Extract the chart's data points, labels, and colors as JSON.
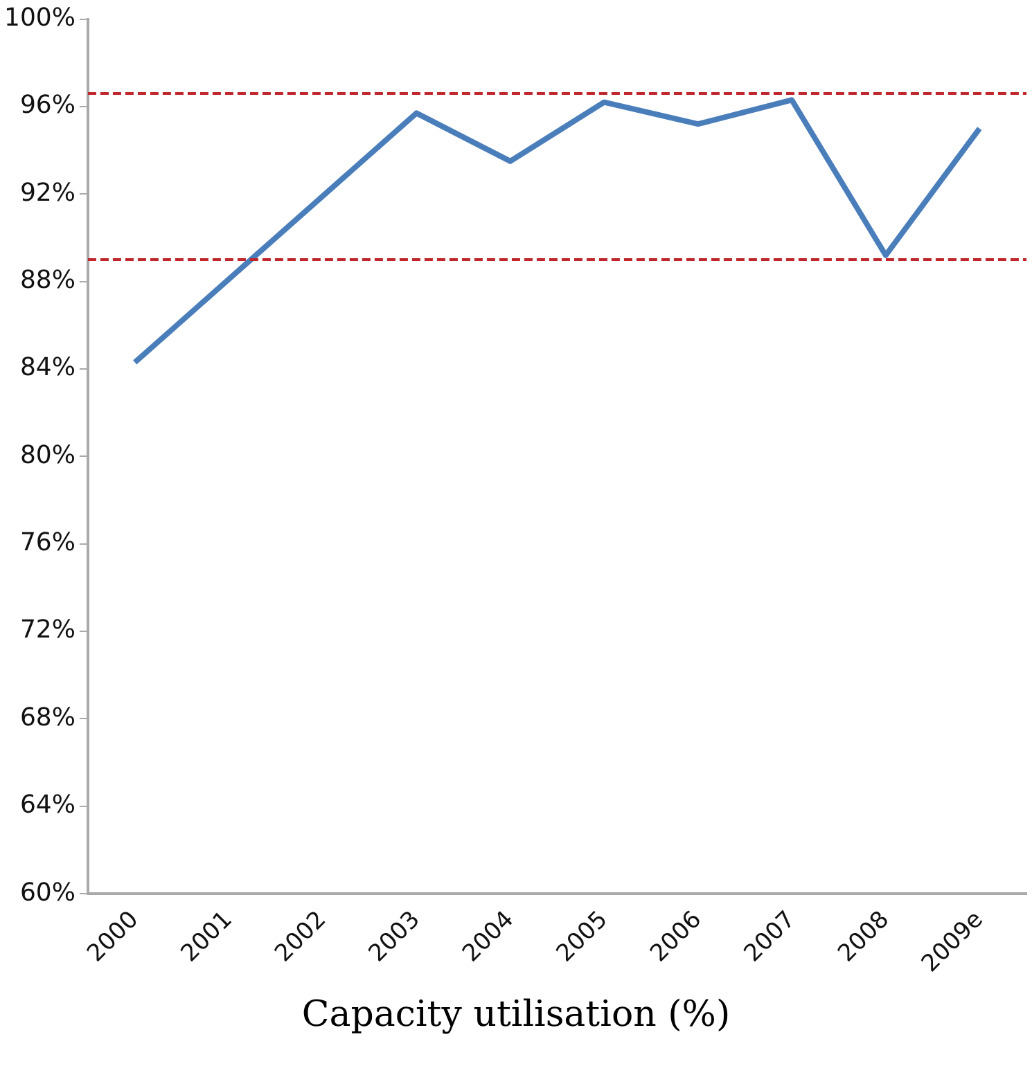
{
  "chart_data": {
    "type": "line",
    "xlabel": "Capacity utilisation (%)",
    "categories": [
      "2000",
      "2001",
      "2002",
      "2003",
      "2004",
      "2005",
      "2006",
      "2007",
      "2008",
      "2009e"
    ],
    "series": [
      {
        "color": "#4a7ebb",
        "values": [
          84.3,
          88.1,
          91.9,
          95.7,
          93.5,
          96.2,
          95.2,
          96.3,
          89.2,
          95.0
        ]
      }
    ],
    "ylim": [
      60,
      100
    ],
    "yticks": [
      {
        "value": 60,
        "label": "60%"
      },
      {
        "value": 64,
        "label": "64%"
      },
      {
        "value": 68,
        "label": "68%"
      },
      {
        "value": 72,
        "label": "72%"
      },
      {
        "value": 76,
        "label": "76%"
      },
      {
        "value": 80,
        "label": "80%"
      },
      {
        "value": 84,
        "label": "84%"
      },
      {
        "value": 88,
        "label": "88%"
      },
      {
        "value": 92,
        "label": "92%"
      },
      {
        "value": 96,
        "label": "96%"
      },
      {
        "value": 100,
        "label": "100%"
      }
    ],
    "ref_lines": [
      {
        "axis": "y",
        "value": 96.6,
        "color": "#c0272d",
        "line_style": "dashed"
      },
      {
        "axis": "y",
        "value": 89.0,
        "color": "#c0272d",
        "line_style": "dashed"
      }
    ],
    "grid": false,
    "legend": false,
    "marker": "none",
    "line_style": "solid"
  }
}
